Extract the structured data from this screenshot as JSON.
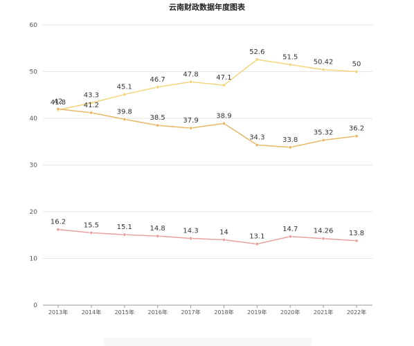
{
  "chart_data": {
    "type": "line",
    "title": "云南财政数据年度图表",
    "categories": [
      "2013年",
      "2014年",
      "2015年",
      "2016年",
      "2017年",
      "2018年",
      "2019年",
      "2020年",
      "2021年",
      "2022年"
    ],
    "ylim": [
      0,
      60
    ],
    "yticks": [
      0,
      10,
      20,
      30,
      40,
      50,
      60
    ],
    "grid": true,
    "legend": "none",
    "series": [
      {
        "values": [
          41.8,
          43.3,
          45.1,
          46.7,
          47.8,
          47.1,
          52.6,
          51.5,
          50.42,
          50
        ],
        "labels": [
          "41.8",
          "43.3",
          "45.1",
          "46.7",
          "47.8",
          "47.1",
          "52.6",
          "51.5",
          "50.42",
          "50"
        ],
        "color": "#f2d57a"
      },
      {
        "values": [
          42,
          41.2,
          39.8,
          38.5,
          37.9,
          38.9,
          34.3,
          33.8,
          35.32,
          36.2
        ],
        "labels": [
          "42",
          "41.2",
          "39.8",
          "38.5",
          "37.9",
          "38.9",
          "34.3",
          "33.8",
          "35.32",
          "36.2"
        ],
        "color": "#e8b765"
      },
      {
        "values": [
          16.2,
          15.5,
          15.1,
          14.8,
          14.3,
          14,
          13.1,
          14.7,
          14.26,
          13.8
        ],
        "labels": [
          "16.2",
          "15.5",
          "15.1",
          "14.8",
          "14.3",
          "14",
          "13.1",
          "14.7",
          "14.26",
          "13.8"
        ],
        "color": "#e8a0a0"
      }
    ]
  }
}
